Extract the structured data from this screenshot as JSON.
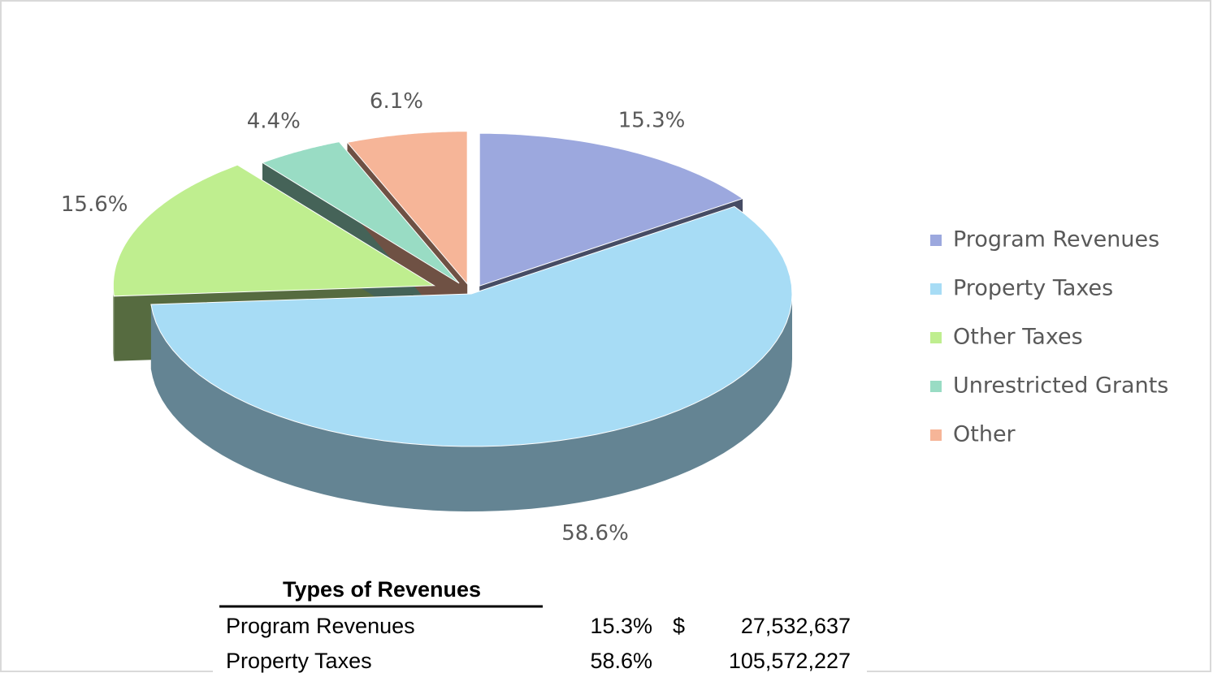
{
  "chart_data": {
    "type": "pie",
    "categories": [
      "Program Revenues",
      "Property Taxes",
      "Other Taxes",
      "Unrestricted Grants",
      "Other"
    ],
    "values": [
      15.3,
      58.6,
      15.6,
      4.4,
      6.1
    ],
    "value_labels": [
      "15.3%",
      "58.6%",
      "15.6%",
      "4.4%",
      "6.1%"
    ],
    "colors": [
      "#9ca8de",
      "#a7dcf5",
      "#bfee8f",
      "#99dcc4",
      "#f6b598"
    ],
    "legend": "right"
  },
  "table": {
    "title": "Types of Revenues",
    "rows": [
      {
        "label": "Program Revenues",
        "percent": "15.3%",
        "currency": "$",
        "amount": "27,532,637"
      },
      {
        "label": "Property Taxes",
        "percent": "58.6%",
        "amount": "105,572,227"
      }
    ]
  }
}
